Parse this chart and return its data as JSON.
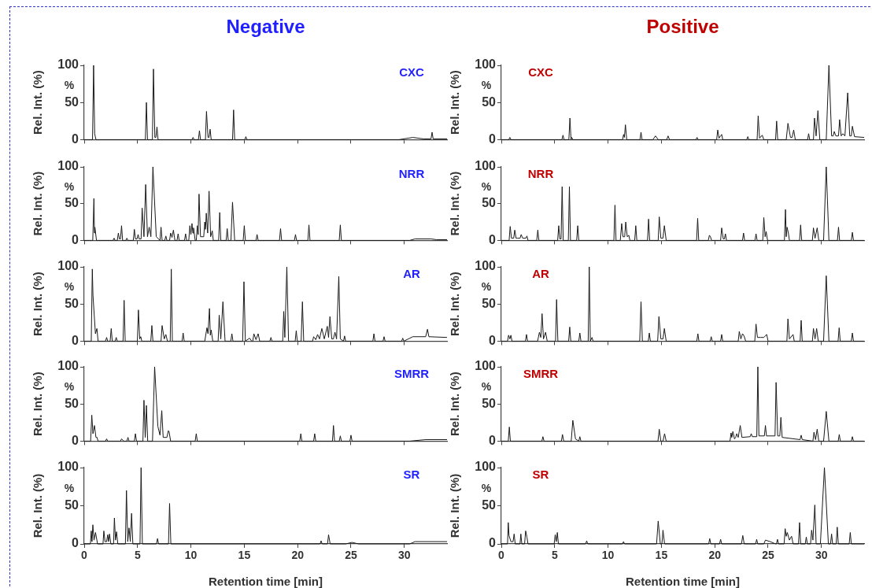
{
  "chart_data": [
    {
      "type": "line",
      "title": "CXC",
      "ylabel": "Rel. Int. (%)",
      "annotations": [
        "%",
        "Negative"
      ],
      "xlim": [
        0,
        34
      ],
      "xticks": [
        0,
        5,
        10,
        15,
        20,
        25,
        30
      ],
      "ylim": [
        0,
        100
      ],
      "yticks": [
        0,
        50,
        100
      ],
      "tick_labels": "y",
      "series": [
        {
          "color": "#1a1a1a",
          "x": [
            0,
            0.78,
            0.88,
            0.98,
            1.1,
            5.73,
            5.83,
            5.93,
            6.39,
            6.49,
            6.62,
            6.72,
            6.82,
            6.92,
            10.1,
            10.2,
            10.3,
            10.7,
            10.8,
            10.9,
            11.36,
            11.46,
            11.6,
            11.7,
            11.8,
            11.9,
            13.9,
            14.0,
            14.1,
            15.05,
            15.15,
            15.25,
            29.5,
            30.8,
            31.8,
            32.5,
            32.6,
            32.7,
            34
          ],
          "values": [
            0,
            0,
            100,
            8,
            0,
            0,
            50,
            0,
            0,
            95,
            3,
            3,
            17,
            0,
            0,
            3,
            0,
            0,
            12,
            0,
            0,
            38,
            3,
            3,
            14,
            0,
            0,
            40,
            0,
            0,
            4,
            0,
            0,
            3,
            1,
            1,
            10,
            1,
            1
          ]
        }
      ]
    },
    {
      "type": "line",
      "title": "CXC",
      "ylabel": "Rel. Int. (%)",
      "annotations": [
        "%",
        "Positive"
      ],
      "xlim": [
        0,
        34
      ],
      "xticks": [
        0,
        5,
        10,
        15,
        20,
        25,
        30
      ],
      "ylim": [
        0,
        100
      ],
      "yticks": [
        0,
        50,
        100
      ],
      "tick_labels": "y",
      "series": [
        {
          "color": "#1a1a1a",
          "x": [
            0,
            0.7,
            0.8,
            0.9,
            5.68,
            5.78,
            5.88,
            6.33,
            6.43,
            6.53,
            6.6,
            6.7,
            11.36,
            11.46,
            11.53,
            11.63,
            11.75,
            12.99,
            13.09,
            13.19,
            14.2,
            14.45,
            14.7,
            15.5,
            15.63,
            15.76,
            18.24,
            18.34,
            18.44,
            20.18,
            20.28,
            20.4,
            20.55,
            20.65,
            20.75,
            23.0,
            23.1,
            23.2,
            23.97,
            24.07,
            24.2,
            24.45,
            24.6,
            25.7,
            25.8,
            25.9,
            26.7,
            26.86,
            27.1,
            27.25,
            27.4,
            27.55,
            28.7,
            28.8,
            28.9,
            29.25,
            29.35,
            29.5,
            29.67,
            29.85,
            30.45,
            30.7,
            30.95,
            31.1,
            31.2,
            31.35,
            31.6,
            31.7,
            31.85,
            32.0,
            32.2,
            32.46,
            32.65,
            32.8,
            32.9,
            33.1,
            34
          ],
          "values": [
            0,
            0,
            3,
            0,
            0,
            6,
            0,
            0,
            29,
            0,
            3,
            0,
            0,
            7,
            3,
            20,
            0,
            0,
            10,
            0,
            0,
            5,
            0,
            0,
            5,
            0,
            0,
            3,
            0,
            0,
            13,
            2,
            5,
            7,
            0,
            0,
            4,
            0,
            0,
            32,
            2,
            6,
            0,
            0,
            25,
            0,
            0,
            22,
            3,
            3,
            13,
            0,
            0,
            8,
            0,
            0,
            29,
            5,
            39,
            0,
            0,
            100,
            5,
            5,
            11,
            5,
            5,
            27,
            5,
            8,
            5,
            63,
            5,
            5,
            18,
            4,
            3
          ]
        }
      ]
    },
    {
      "type": "line",
      "title": "NRR",
      "ylabel": "Rel. Int. (%)",
      "annotations": [
        "%"
      ],
      "xlim": [
        0,
        34
      ],
      "xticks": [
        0,
        5,
        10,
        15,
        20,
        25,
        30
      ],
      "ylim": [
        0,
        100
      ],
      "yticks": [
        0,
        50,
        100
      ],
      "tick_labels": "y",
      "series": [
        {
          "color": "#1a1a1a",
          "x": [
            0,
            0.8,
            0.91,
            0.96,
            1.0,
            1.15,
            2.7,
            2.8,
            2.9,
            3.1,
            3.2,
            3.3,
            3.4,
            3.5,
            3.6,
            3.9,
            4.0,
            4.1,
            4.6,
            4.7,
            4.8,
            4.95,
            5.05,
            5.15,
            5.33,
            5.43,
            5.6,
            5.76,
            5.93,
            6.09,
            6.25,
            6.44,
            6.75,
            7.1,
            7.2,
            7.3,
            7.55,
            7.65,
            7.75,
            8.0,
            8.1,
            8.23,
            8.36,
            8.5,
            8.7,
            8.8,
            8.9,
            9.4,
            9.5,
            9.6,
            9.8,
            9.9,
            10.0,
            10.1,
            10.18,
            10.25,
            10.4,
            10.5,
            10.6,
            10.68,
            10.76,
            10.9,
            11.2,
            11.3,
            11.37,
            11.44,
            11.57,
            11.7,
            11.85,
            12.0,
            12.1,
            12.6,
            12.7,
            12.8,
            13.3,
            13.4,
            13.5,
            13.75,
            13.9,
            14.1,
            14.9,
            15.0,
            15.1,
            16.1,
            16.2,
            16.3,
            18.3,
            18.4,
            18.5,
            19.7,
            19.8,
            19.9,
            20.96,
            21.06,
            21.16,
            23.9,
            24.0,
            24.1,
            30.5,
            31,
            32.5,
            33,
            34
          ],
          "values": [
            0,
            0,
            57,
            10,
            18,
            0,
            0,
            3,
            0,
            0,
            10,
            2,
            2,
            20,
            0,
            0,
            3,
            0,
            0,
            15,
            2,
            2,
            8,
            2,
            2,
            44,
            5,
            76,
            5,
            18,
            5,
            100,
            5,
            0,
            18,
            0,
            0,
            6,
            0,
            0,
            10,
            4,
            14,
            0,
            0,
            9,
            0,
            0,
            9,
            0,
            0,
            20,
            8,
            23,
            10,
            17,
            0,
            0,
            20,
            8,
            63,
            5,
            5,
            25,
            15,
            37,
            10,
            67,
            5,
            13,
            0,
            0,
            38,
            0,
            0,
            16,
            0,
            0,
            52,
            0,
            0,
            20,
            0,
            0,
            8,
            0,
            0,
            16,
            0,
            0,
            8,
            0,
            0,
            21,
            0,
            0,
            21,
            0,
            0,
            2,
            2,
            1,
            1
          ]
        }
      ]
    },
    {
      "type": "line",
      "title": "NRR",
      "ylabel": "Rel. Int. (%)",
      "annotations": [
        "%"
      ],
      "xlim": [
        0,
        34
      ],
      "xticks": [
        0,
        5,
        10,
        15,
        20,
        25,
        30
      ],
      "ylim": [
        0,
        100
      ],
      "yticks": [
        0,
        50,
        100
      ],
      "tick_labels": "y",
      "series": [
        {
          "color": "#1a1a1a",
          "x": [
            0,
            0.73,
            0.83,
            0.95,
            1.16,
            1.26,
            1.38,
            1.5,
            1.76,
            1.86,
            2.0,
            2.3,
            2.4,
            2.5,
            3.32,
            3.42,
            3.52,
            5.28,
            5.38,
            5.48,
            5.6,
            5.7,
            5.8,
            6.28,
            6.38,
            6.48,
            7.06,
            7.16,
            7.26,
            10.55,
            10.65,
            10.75,
            11.15,
            11.28,
            11.4,
            11.56,
            11.66,
            11.8,
            11.95,
            12.05,
            12.5,
            12.6,
            12.7,
            13.7,
            13.8,
            13.9,
            14.7,
            14.8,
            14.95,
            15.15,
            15.28,
            15.45,
            18.3,
            18.4,
            18.5,
            19.4,
            19.5,
            19.6,
            19.7,
            20.55,
            20.65,
            20.8,
            20.9,
            21.0,
            21.1,
            22.6,
            22.7,
            22.8,
            23.77,
            23.87,
            23.97,
            24.5,
            24.6,
            24.72,
            24.82,
            24.95,
            26.53,
            26.63,
            26.7,
            26.78,
            26.9,
            27.0,
            27.95,
            28.05,
            28.15,
            29.15,
            29.25,
            29.4,
            29.6,
            29.75,
            30.2,
            30.45,
            30.7,
            31.5,
            31.6,
            31.7,
            32.8,
            32.9,
            33.0,
            34
          ],
          "values": [
            0,
            0,
            19,
            3,
            3,
            14,
            3,
            3,
            3,
            8,
            3,
            3,
            6,
            0,
            0,
            14,
            0,
            0,
            20,
            2,
            2,
            73,
            0,
            0,
            73,
            0,
            0,
            20,
            0,
            0,
            48,
            0,
            0,
            23,
            5,
            5,
            25,
            5,
            7,
            0,
            0,
            20,
            0,
            0,
            29,
            0,
            0,
            32,
            3,
            3,
            20,
            0,
            0,
            30,
            0,
            0,
            7,
            5,
            0,
            0,
            17,
            2,
            2,
            9,
            0,
            0,
            10,
            0,
            0,
            9,
            0,
            0,
            31,
            5,
            12,
            0,
            0,
            42,
            5,
            18,
            10,
            0,
            0,
            21,
            0,
            0,
            17,
            3,
            17,
            0,
            0,
            100,
            0,
            0,
            18,
            0,
            0,
            11,
            0,
            0
          ]
        }
      ]
    },
    {
      "type": "line",
      "title": "AR",
      "ylabel": "Rel. Int. (%)",
      "annotations": [
        "%"
      ],
      "xlim": [
        0,
        34
      ],
      "xticks": [
        0,
        5,
        10,
        15,
        20,
        25,
        30
      ],
      "ylim": [
        0,
        100
      ],
      "yticks": [
        0,
        50,
        100
      ],
      "tick_labels": "y",
      "series": [
        {
          "color": "#1a1a1a",
          "x": [
            0,
            0.66,
            0.76,
            0.82,
            0.88,
            1.05,
            1.19,
            1.3,
            2.0,
            2.1,
            2.2,
            2.43,
            2.53,
            2.63,
            2.9,
            3.0,
            3.1,
            3.64,
            3.74,
            3.84,
            4.98,
            5.08,
            5.2,
            5.3,
            5.4,
            6.24,
            6.34,
            6.44,
            7.2,
            7.3,
            7.5,
            7.65,
            7.8,
            8.06,
            8.16,
            8.26,
            9.17,
            9.27,
            9.37,
            11.3,
            11.5,
            11.6,
            11.74,
            11.82,
            11.9,
            12.05,
            12.55,
            12.65,
            12.8,
            13.0,
            13.2,
            13.74,
            13.84,
            13.94,
            14.85,
            14.97,
            15.1,
            15.5,
            15.7,
            15.8,
            15.9,
            16.1,
            16.3,
            16.45,
            17.4,
            17.5,
            17.6,
            18.6,
            18.7,
            18.8,
            18.99,
            19.15,
            19.77,
            19.87,
            19.97,
            20.33,
            20.45,
            20.57,
            21.4,
            21.5,
            21.7,
            21.87,
            22.05,
            22.27,
            22.5,
            22.78,
            22.9,
            23.03,
            23.2,
            23.35,
            23.5,
            23.65,
            23.86,
            24.0,
            24.3,
            24.4,
            24.5,
            27.05,
            27.15,
            27.25,
            28.0,
            28.1,
            28.2,
            29.75,
            29.85,
            29.95,
            30.8,
            32.0,
            32.17,
            32.3,
            34
          ],
          "values": [
            0,
            0,
            97,
            62,
            62,
            10,
            17,
            0,
            0,
            5,
            0,
            0,
            17,
            0,
            0,
            5,
            0,
            0,
            55,
            0,
            0,
            42,
            3,
            6,
            0,
            0,
            21,
            0,
            0,
            21,
            3,
            9,
            0,
            0,
            97,
            0,
            0,
            11,
            0,
            0,
            18,
            10,
            44,
            8,
            15,
            0,
            0,
            35,
            3,
            53,
            0,
            0,
            10,
            0,
            0,
            80,
            0,
            4,
            0,
            0,
            10,
            2,
            10,
            0,
            0,
            5,
            0,
            0,
            40,
            5,
            100,
            0,
            0,
            14,
            0,
            0,
            53,
            0,
            0,
            6,
            2,
            9,
            3,
            17,
            3,
            20,
            5,
            33,
            3,
            3,
            12,
            3,
            87,
            3,
            0,
            7,
            0,
            0,
            10,
            0,
            0,
            6,
            0,
            0,
            4,
            0,
            6,
            6,
            16,
            6,
            5
          ]
        }
      ]
    },
    {
      "type": "line",
      "title": "AR",
      "ylabel": "Rel. Int. (%)",
      "annotations": [
        "%"
      ],
      "xlim": [
        0,
        34
      ],
      "xticks": [
        0,
        5,
        10,
        15,
        20,
        25,
        30
      ],
      "ylim": [
        0,
        100
      ],
      "yticks": [
        0,
        50,
        100
      ],
      "tick_labels": "y",
      "series": [
        {
          "color": "#1a1a1a",
          "x": [
            0,
            0.58,
            0.68,
            0.8,
            0.9,
            1.0,
            2.26,
            2.36,
            2.46,
            3.4,
            3.57,
            3.7,
            3.82,
            3.95,
            4.15,
            4.3,
            5.08,
            5.18,
            5.3,
            6.31,
            6.41,
            6.51,
            7.26,
            7.36,
            7.46,
            8.14,
            8.24,
            8.34,
            8.5,
            8.6,
            12.97,
            13.09,
            13.22,
            13.77,
            13.87,
            13.97,
            14.65,
            14.77,
            14.95,
            15.15,
            15.28,
            15.45,
            18.32,
            18.42,
            18.52,
            19.57,
            19.67,
            19.77,
            20.55,
            20.65,
            20.75,
            22.2,
            22.3,
            22.45,
            22.6,
            22.75,
            22.9,
            23.75,
            23.87,
            24.0,
            24.3,
            24.6,
            24.87,
            25.0,
            26.76,
            26.86,
            27.0,
            27.34,
            27.45,
            28.0,
            28.1,
            28.2,
            29.15,
            29.25,
            29.4,
            29.55,
            29.7,
            30.2,
            30.45,
            30.7,
            31.56,
            31.66,
            31.76,
            32.8,
            32.9,
            33.0,
            34
          ],
          "values": [
            0,
            0,
            8,
            3,
            8,
            0,
            0,
            9,
            0,
            0,
            12,
            5,
            37,
            3,
            12,
            0,
            0,
            56,
            0,
            0,
            19,
            0,
            0,
            11,
            0,
            0,
            100,
            0,
            5,
            0,
            0,
            53,
            0,
            0,
            11,
            0,
            0,
            33,
            3,
            3,
            17,
            0,
            0,
            10,
            0,
            0,
            6,
            0,
            0,
            9,
            0,
            0,
            13,
            3,
            10,
            7,
            0,
            0,
            23,
            5,
            5,
            5,
            9,
            0,
            0,
            30,
            3,
            9,
            0,
            0,
            28,
            0,
            0,
            17,
            3,
            17,
            0,
            0,
            88,
            0,
            0,
            18,
            0,
            0,
            11,
            0,
            0
          ]
        }
      ]
    },
    {
      "type": "line",
      "title": "SMRR",
      "ylabel": "Rel. Int. (%)",
      "annotations": [
        "%"
      ],
      "xlim": [
        0,
        34
      ],
      "xticks": [
        0,
        5,
        10,
        15,
        20,
        25,
        30
      ],
      "ylim": [
        0,
        100
      ],
      "yticks": [
        0,
        50,
        100
      ],
      "tick_labels": "y",
      "series": [
        {
          "color": "#1a1a1a",
          "x": [
            0,
            0.6,
            0.71,
            0.82,
            0.96,
            1.1,
            1.2,
            1.3,
            2.0,
            2.1,
            2.2,
            3.4,
            3.5,
            3.7,
            4.0,
            4.1,
            4.2,
            4.7,
            4.8,
            4.9,
            5.5,
            5.6,
            5.72,
            5.83,
            5.95,
            6.4,
            6.6,
            6.9,
            7.1,
            7.27,
            7.4,
            7.75,
            7.88,
            7.95,
            8.1,
            10.4,
            10.5,
            10.6,
            20.2,
            20.3,
            20.4,
            21.5,
            21.6,
            21.7,
            23.26,
            23.36,
            23.46,
            23.9,
            24.0,
            24.1,
            24.9,
            25.0,
            25.1,
            30.5,
            32,
            34
          ],
          "values": [
            0,
            0,
            35,
            10,
            21,
            5,
            5,
            0,
            0,
            3,
            0,
            0,
            3,
            0,
            0,
            5,
            0,
            0,
            10,
            0,
            0,
            55,
            5,
            48,
            0,
            0,
            100,
            20,
            8,
            41,
            5,
            5,
            14,
            13,
            0,
            0,
            10,
            0,
            0,
            10,
            0,
            0,
            10,
            0,
            0,
            21,
            0,
            0,
            7,
            0,
            0,
            8,
            0,
            0,
            2,
            2
          ]
        }
      ]
    },
    {
      "type": "line",
      "title": "SMRR",
      "ylabel": "Rel. Int. (%)",
      "annotations": [
        "%"
      ],
      "xlim": [
        0,
        34
      ],
      "xticks": [
        0,
        5,
        10,
        15,
        20,
        25,
        30
      ],
      "ylim": [
        0,
        100
      ],
      "yticks": [
        0,
        50,
        100
      ],
      "tick_labels": "y",
      "series": [
        {
          "color": "#1a1a1a",
          "x": [
            0,
            0.65,
            0.75,
            0.85,
            3.8,
            3.9,
            4.0,
            5.63,
            5.73,
            5.85,
            6.55,
            6.7,
            6.95,
            7.26,
            7.36,
            7.46,
            14.68,
            14.8,
            14.95,
            15.15,
            15.3,
            15.45,
            21.43,
            21.53,
            21.6,
            21.7,
            21.85,
            21.96,
            22.06,
            22.2,
            22.39,
            22.55,
            23.32,
            23.42,
            23.52,
            23.94,
            24.04,
            24.14,
            24.65,
            24.75,
            24.85,
            25.65,
            25.75,
            25.9,
            26.1,
            26.2,
            26.32,
            28.0,
            28.1,
            28.2,
            29.2,
            29.3,
            29.45,
            29.6,
            29.75,
            30.2,
            30.45,
            30.7,
            31.57,
            31.67,
            31.77,
            32.8,
            32.9,
            33.0,
            34
          ],
          "values": [
            0,
            0,
            19,
            0,
            0,
            6,
            0,
            0,
            9,
            0,
            0,
            28,
            3,
            0,
            6,
            0,
            0,
            16,
            0,
            0,
            10,
            0,
            0,
            11,
            5,
            13,
            3,
            5,
            10,
            5,
            21,
            5,
            6,
            10,
            6,
            6,
            100,
            7,
            7,
            21,
            7,
            7,
            79,
            7,
            7,
            32,
            5,
            2,
            8,
            2,
            0,
            12,
            2,
            16,
            0,
            0,
            40,
            0,
            0,
            9,
            0,
            0,
            6,
            0,
            0
          ]
        }
      ]
    },
    {
      "type": "line",
      "title": "SR",
      "xlabel": "Retention time [min]",
      "ylabel": "Rel. Int. (%)",
      "annotations": [
        "%"
      ],
      "xlim": [
        0,
        34
      ],
      "xticks": [
        0,
        5,
        10,
        15,
        20,
        25,
        30
      ],
      "ylim": [
        0,
        100
      ],
      "yticks": [
        0,
        50,
        100
      ],
      "series": [
        {
          "color": "#1a1a1a",
          "x": [
            0,
            0.58,
            0.66,
            0.73,
            0.81,
            0.92,
            1.06,
            1.25,
            1.76,
            1.84,
            1.95,
            2.1,
            2.2,
            2.28,
            2.37,
            2.5,
            2.75,
            2.83,
            2.93,
            3.03,
            3.15,
            3.86,
            3.96,
            4.08,
            4.2,
            4.32,
            4.44,
            4.56,
            5.23,
            5.33,
            5.45,
            6.77,
            6.87,
            6.97,
            7.9,
            8.0,
            8.12,
            22.1,
            22.2,
            22.3,
            22.8,
            22.9,
            23.05,
            24.5,
            25.1,
            25.7,
            30.5,
            31,
            34
          ],
          "values": [
            0,
            0,
            17,
            3,
            25,
            5,
            15,
            0,
            0,
            17,
            3,
            3,
            12,
            3,
            13,
            0,
            0,
            34,
            5,
            16,
            0,
            0,
            70,
            3,
            21,
            3,
            40,
            0,
            0,
            100,
            0,
            0,
            7,
            0,
            0,
            53,
            0,
            0,
            4,
            0,
            0,
            12,
            0,
            0,
            2,
            0,
            0,
            3,
            3
          ]
        }
      ]
    },
    {
      "type": "line",
      "title": "SR",
      "xlabel": "Retention time [min]",
      "ylabel": "Rel. Int. (%)",
      "annotations": [
        "%"
      ],
      "xlim": [
        0,
        34
      ],
      "xticks": [
        0,
        5,
        10,
        15,
        20,
        25,
        30
      ],
      "ylim": [
        0,
        100
      ],
      "yticks": [
        0,
        50,
        100
      ],
      "series": [
        {
          "color": "#1a1a1a",
          "x": [
            0,
            0.58,
            0.65,
            0.72,
            0.9,
            1.1,
            1.2,
            1.3,
            1.75,
            1.83,
            1.92,
            2.18,
            2.28,
            2.4,
            2.5,
            4.95,
            5.05,
            5.15,
            5.25,
            5.35,
            7.9,
            8.0,
            8.1,
            11.35,
            11.45,
            11.55,
            14.55,
            14.7,
            14.9,
            15.05,
            15.15,
            15.3,
            19.43,
            19.53,
            19.63,
            20.45,
            20.55,
            20.65,
            22.5,
            22.63,
            22.76,
            23.83,
            23.93,
            24.03,
            24.6,
            24.75,
            25.2,
            25.7,
            25.78,
            25.88,
            25.98,
            26.5,
            26.6,
            26.7,
            26.8,
            27.0,
            27.2,
            27.35,
            27.85,
            27.95,
            28.05,
            28.48,
            28.58,
            28.68,
            28.98,
            29.08,
            29.2,
            29.38,
            29.5,
            29.9,
            30.28,
            30.65,
            30.85,
            30.95,
            31.05,
            31.38,
            31.48,
            31.58,
            32.6,
            32.7,
            32.8,
            34
          ],
          "values": [
            0,
            0,
            28,
            11,
            3,
            3,
            13,
            0,
            0,
            13,
            0,
            0,
            17,
            9,
            0,
            0,
            12,
            3,
            15,
            0,
            0,
            4,
            0,
            0,
            3,
            0,
            0,
            30,
            0,
            0,
            18,
            0,
            0,
            7,
            0,
            0,
            6,
            0,
            0,
            11,
            0,
            0,
            6,
            0,
            0,
            5,
            3,
            0,
            0,
            6,
            0,
            0,
            20,
            10,
            15,
            5,
            10,
            0,
            0,
            28,
            0,
            0,
            9,
            0,
            0,
            18,
            5,
            51,
            0,
            0,
            100,
            0,
            0,
            13,
            0,
            0,
            22,
            0,
            0,
            15,
            0,
            0
          ]
        }
      ]
    }
  ]
}
